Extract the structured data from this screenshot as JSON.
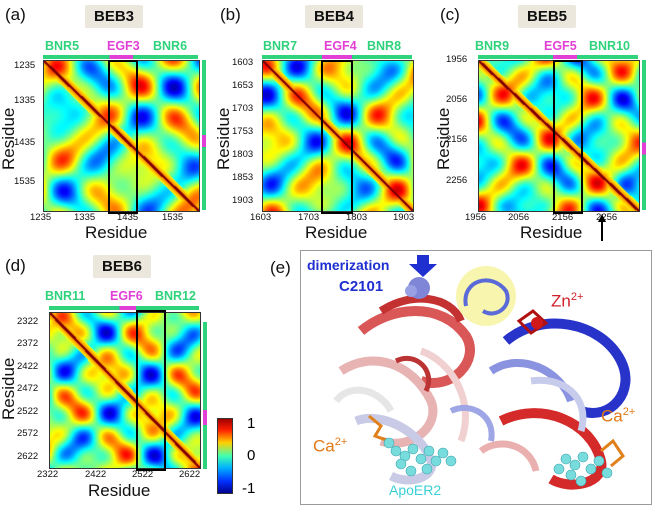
{
  "panels": [
    {
      "id": "a",
      "label": "(a)",
      "title": "BEB3",
      "seg_left": "BNR5",
      "seg_mid": "EGF3",
      "seg_right": "BNR6",
      "y_ticks": [
        "1235",
        "1335",
        "1435",
        "1535"
      ],
      "x_ticks": [
        "1235",
        "1335",
        "1435",
        "1535"
      ],
      "xlabel": "Residue",
      "ylabel": "Residue"
    },
    {
      "id": "b",
      "label": "(b)",
      "title": "BEB4",
      "seg_left": "BNR7",
      "seg_mid": "EGF4",
      "seg_right": "BNR8",
      "y_ticks": [
        "1603",
        "1653",
        "1703",
        "1753",
        "1803",
        "1853",
        "1903"
      ],
      "x_ticks": [
        "1603",
        "1703",
        "1803",
        "1903"
      ],
      "xlabel": "Residue",
      "ylabel": "Residue"
    },
    {
      "id": "c",
      "label": "(c)",
      "title": "BEB5",
      "seg_left": "BNR9",
      "seg_mid": "EGF5",
      "seg_right": "BNR10",
      "y_ticks": [
        "1956",
        "2056",
        "2156",
        "2256"
      ],
      "x_ticks": [
        "1956",
        "2056",
        "2156",
        "2256"
      ],
      "xlabel": "Residue",
      "ylabel": "Residue"
    },
    {
      "id": "d",
      "label": "(d)",
      "title": "BEB6",
      "seg_left": "BNR11",
      "seg_mid": "EGF6",
      "seg_right": "BNR12",
      "y_ticks": [
        "2322",
        "2372",
        "2422",
        "2472",
        "2522",
        "2572",
        "2622"
      ],
      "x_ticks": [
        "2322",
        "2422",
        "2522",
        "2622"
      ],
      "xlabel": "Residue",
      "ylabel": "Residue"
    }
  ],
  "colorbar": {
    "ticks": [
      "1",
      "0",
      "-1"
    ],
    "colors": [
      "#a00000",
      "#ff2000",
      "#ffd000",
      "#40ffb0",
      "#00b0ff",
      "#0030ff",
      "#000090"
    ]
  },
  "panel_e": {
    "label": "(e)",
    "dimerization": "dimerization",
    "c2101": "C2101",
    "zn": "Zn",
    "zn_sup": "2+",
    "ca": "Ca",
    "ca_sup": "2+",
    "apoer2": "ApoER2"
  },
  "colors": {
    "bnr": "#2fd37b",
    "egf": "#e23fd6",
    "blue": "#1f2fd0",
    "red": "#d0202a",
    "orange": "#e07a18",
    "cyan": "#39d0d8"
  }
}
